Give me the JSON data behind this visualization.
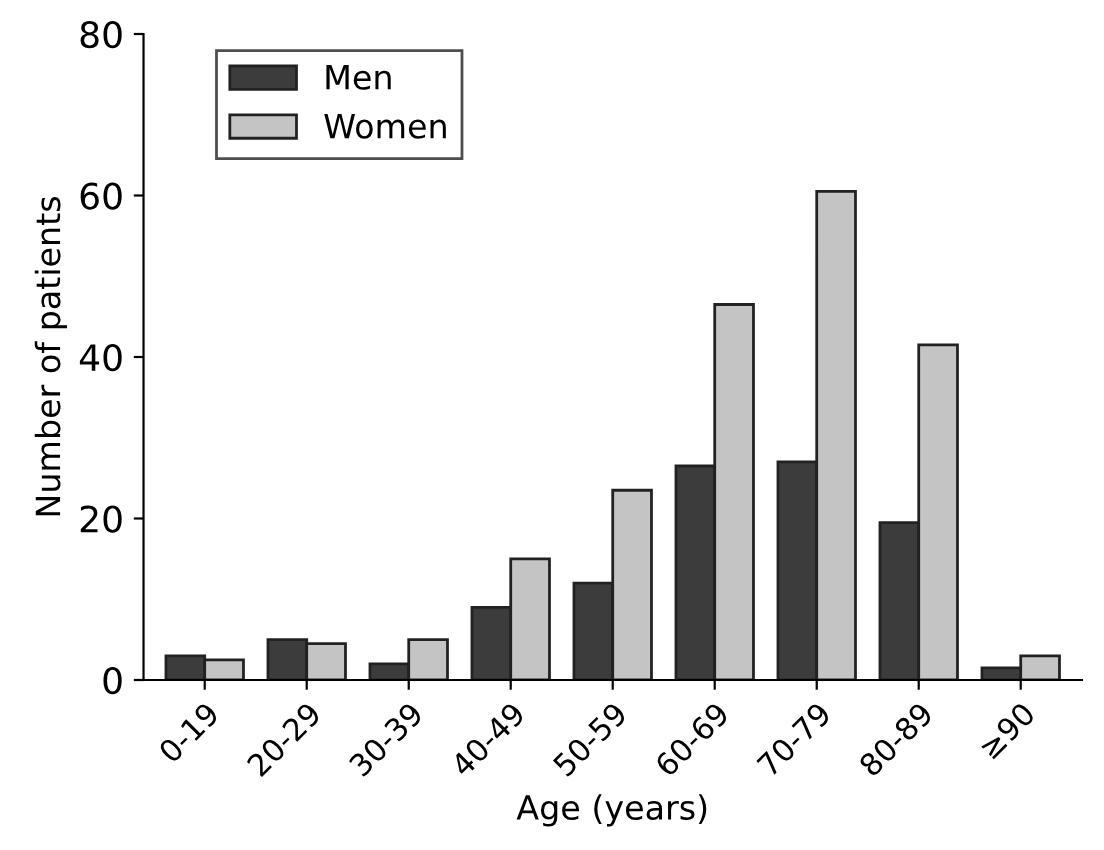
{
  "chart_data": {
    "type": "bar",
    "xlabel": "Age (years)",
    "ylabel": "Number of patients",
    "categories": [
      "0-19",
      "20-29",
      "30-39",
      "40-49",
      "50-59",
      "60-69",
      "70-79",
      "80-89",
      "≥90"
    ],
    "series": [
      {
        "name": "Men",
        "color": "#3c3c3c",
        "values": [
          3,
          5,
          2,
          9,
          12,
          26.5,
          27,
          19.5,
          1.5
        ]
      },
      {
        "name": "Women",
        "color": "#c4c4c4",
        "values": [
          2.5,
          4.5,
          5,
          15,
          23.5,
          46.5,
          60.5,
          41.5,
          3
        ]
      }
    ],
    "ylim": [
      0,
      80
    ],
    "yticks": [
      0,
      20,
      40,
      60,
      80
    ],
    "grid": false,
    "legend": "top left"
  }
}
